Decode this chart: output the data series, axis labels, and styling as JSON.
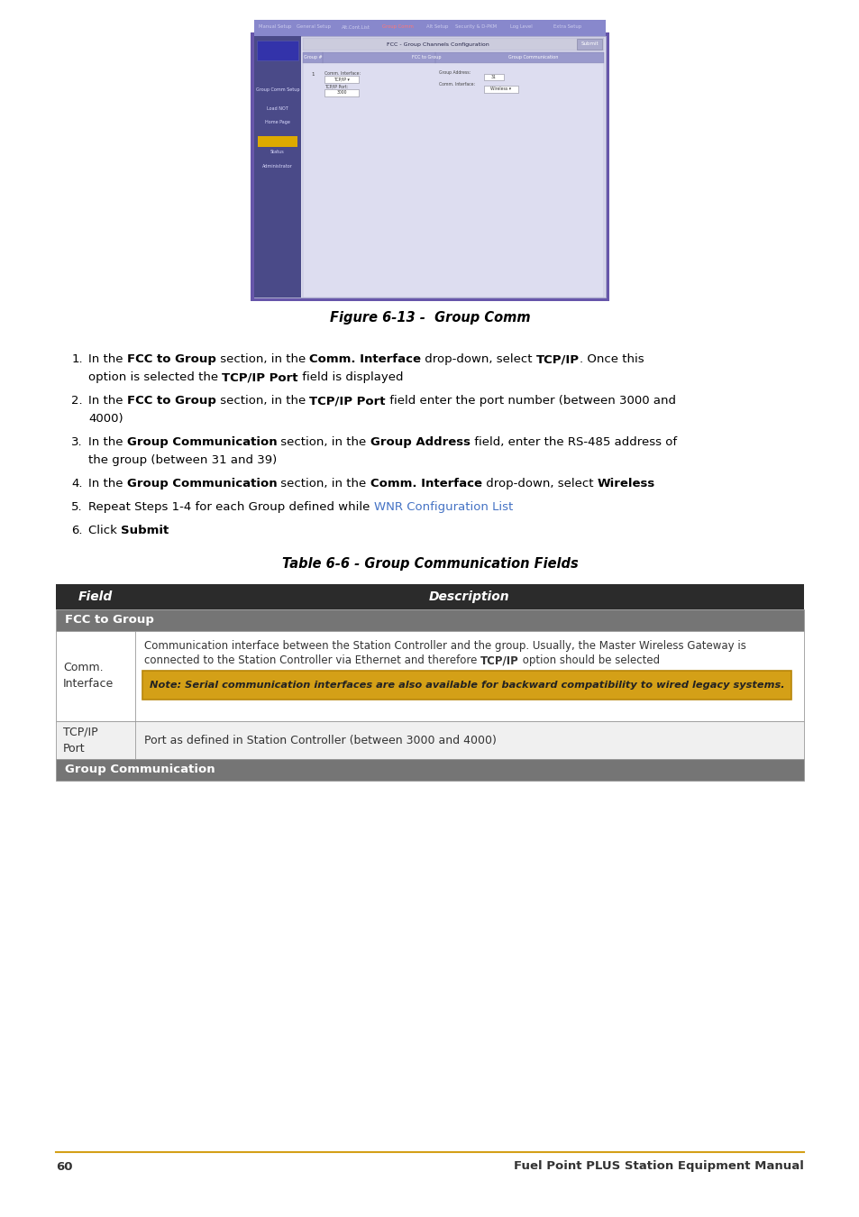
{
  "fig_caption": "Figure 6-13 -  Group Comm",
  "table_caption": "Table 6-6 - Group Communication Fields",
  "table_header_bg": "#2b2b2b",
  "table_header_text_color": "#ffffff",
  "section_header_bg": "#757575",
  "section_header_text_color": "#ffffff",
  "row_bg_light": "#f0f0f0",
  "row_bg_white": "#ffffff",
  "note_bg": "#D4A017",
  "note_border_color": "#b8860b",
  "table_border_color": "#999999",
  "footer_line_color": "#D4A017",
  "page_number": "60",
  "footer_text": "Fuel Point PLUS Station Equipment Manual",
  "background_color": "#ffffff",
  "screenshot_outer_bg": "#6655aa",
  "screenshot_inner_bg": "#ddddef",
  "sidebar_bg": "#4a4a88",
  "content_area_bg": "#e8e8f4",
  "tab_bar_bg": "#7777bb",
  "active_tab_color": "#ff7777",
  "inactive_tab_color": "#ccccee",
  "link_color": "#4472C4"
}
